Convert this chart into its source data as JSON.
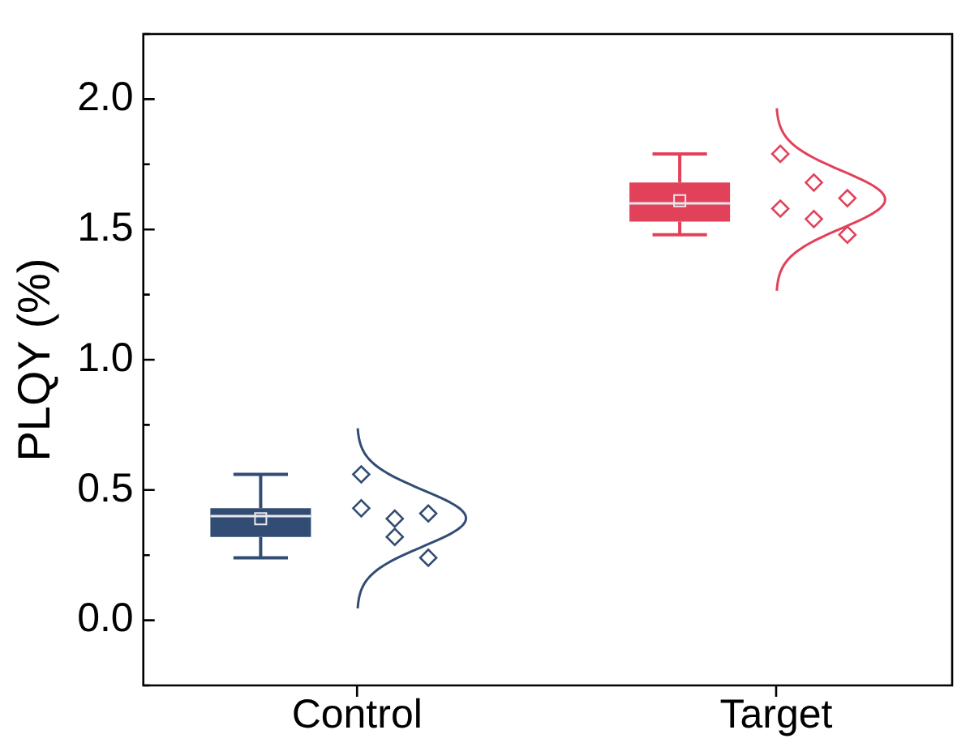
{
  "chart_data": {
    "type": "box",
    "ylabel": "PLQY (%)",
    "categories": [
      "Control",
      "Target"
    ],
    "series": [
      {
        "type": "box",
        "colors": [
          "#324d74",
          "#e2415a"
        ],
        "boxes": [
          {
            "low": 0.24,
            "q1": 0.32,
            "median": 0.4,
            "q3": 0.43,
            "high": 0.56,
            "mean": 0.39
          },
          {
            "low": 1.48,
            "q1": 1.53,
            "median": 1.6,
            "q3": 1.68,
            "high": 1.79,
            "mean": 1.61
          }
        ]
      },
      {
        "type": "scatter",
        "x": [
          "Control",
          "Control",
          "Control",
          "Control",
          "Control",
          "Control",
          "Target",
          "Target",
          "Target",
          "Target",
          "Target",
          "Target"
        ],
        "values": [
          0.43,
          0.39,
          0.41,
          0.56,
          0.32,
          0.24,
          1.79,
          1.68,
          1.62,
          1.58,
          1.54,
          1.48
        ],
        "colors": [
          "#324d74",
          "#324d74",
          "#324d74",
          "#324d74",
          "#324d74",
          "#324d74",
          "#e2415a",
          "#e2415a",
          "#e2415a",
          "#e2415a",
          "#e2415a",
          "#e2415a"
        ]
      }
    ],
    "marker": "diamond",
    "ylim": [
      -0.25,
      2.25
    ],
    "yticks": [
      {
        "value": -0.25,
        "label": null
      },
      {
        "value": 0,
        "label": "0.0"
      },
      {
        "value": 0.25,
        "label": null
      },
      {
        "value": 0.5,
        "label": "0.5"
      },
      {
        "value": 0.75,
        "label": null
      },
      {
        "value": 1,
        "label": "1.0"
      },
      {
        "value": 1.25,
        "label": null
      },
      {
        "value": 1.5,
        "label": "1.5"
      },
      {
        "value": 1.75,
        "label": null
      },
      {
        "value": 2,
        "label": "2.0"
      },
      {
        "value": 2.25,
        "label": null
      }
    ],
    "legend": false,
    "grid": false
  }
}
